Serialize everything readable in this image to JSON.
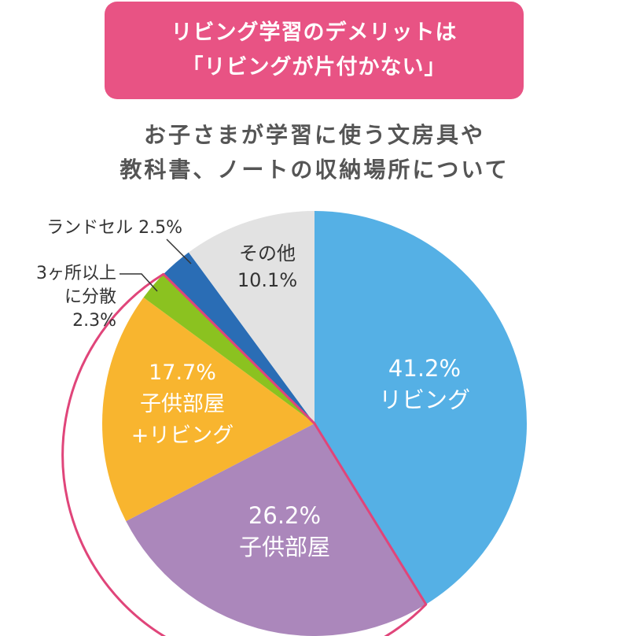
{
  "header": {
    "title_line1": "リビング学習のデメリットは",
    "title_line2": "「リビングが片付かない」"
  },
  "subtitle": {
    "line1": "お子さまが学習に使う文房具や",
    "line2": "教科書、ノートの収納場所について"
  },
  "colors": {
    "banner": "#e85384",
    "highlight_outline": "#e0457a"
  },
  "chart_data": {
    "type": "pie",
    "start": "12 o'clock",
    "direction": "clockwise",
    "slices": [
      {
        "name": "リビング",
        "percent_label": "41.2%",
        "value": 41.2,
        "color": "#55b0e5",
        "label_color": "#ffffff",
        "label_placement": "inside"
      },
      {
        "name": "子供部屋",
        "percent_label": "26.2%",
        "value": 26.2,
        "color": "#ab87bb",
        "label_color": "#ffffff",
        "label_placement": "inside"
      },
      {
        "name": "子供部屋\n+リビング",
        "percent_label": "17.7%",
        "value": 17.7,
        "color": "#f8b52f",
        "label_color": "#ffffff",
        "label_placement": "inside"
      },
      {
        "name": "3ヶ所以上\nに分散",
        "percent_label": "2.3%",
        "value": 2.3,
        "color": "#8bc220",
        "label_color": "#333333",
        "label_placement": "outside-leader"
      },
      {
        "name": "ランドセル",
        "percent_label": "2.5%",
        "value": 2.5,
        "color": "#2a6db5",
        "label_color": "#333333",
        "label_placement": "outside-leader"
      },
      {
        "name": "その他",
        "percent_label": "10.1%",
        "value": 10.1,
        "color": "#e2e2e2",
        "label_color": "#333333",
        "label_placement": "inside"
      }
    ]
  }
}
